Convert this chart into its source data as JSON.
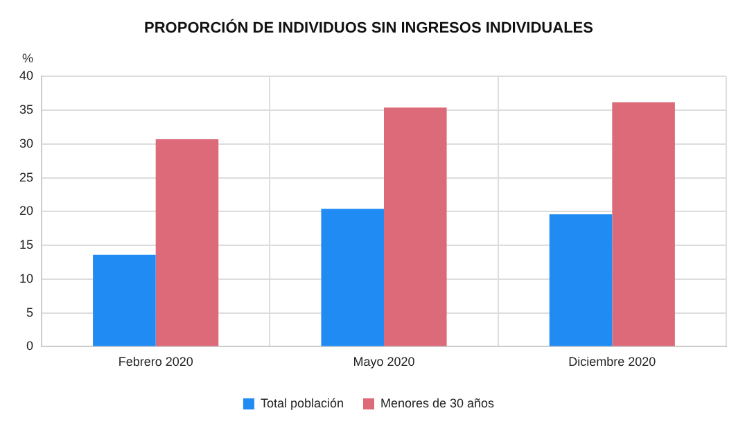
{
  "chart_data": {
    "type": "bar",
    "title": "PROPORCIÓN DE INDIVIDUOS SIN INGRESOS INDIVIDUALES",
    "ylabel": "%",
    "categories": [
      "Febrero 2020",
      "Mayo 2020",
      "Diciembre 2020"
    ],
    "series": [
      {
        "name": "Total población",
        "color": "#1f8bf3",
        "values": [
          13.6,
          20.4,
          19.6
        ]
      },
      {
        "name": "Menores de 30 años",
        "color": "#dc6a79",
        "values": [
          30.7,
          35.4,
          36.2
        ]
      }
    ],
    "ylim": [
      0,
      40
    ],
    "yticks": [
      0,
      5,
      10,
      15,
      20,
      25,
      30,
      35,
      40
    ],
    "grid": true,
    "legend": "bottom"
  }
}
